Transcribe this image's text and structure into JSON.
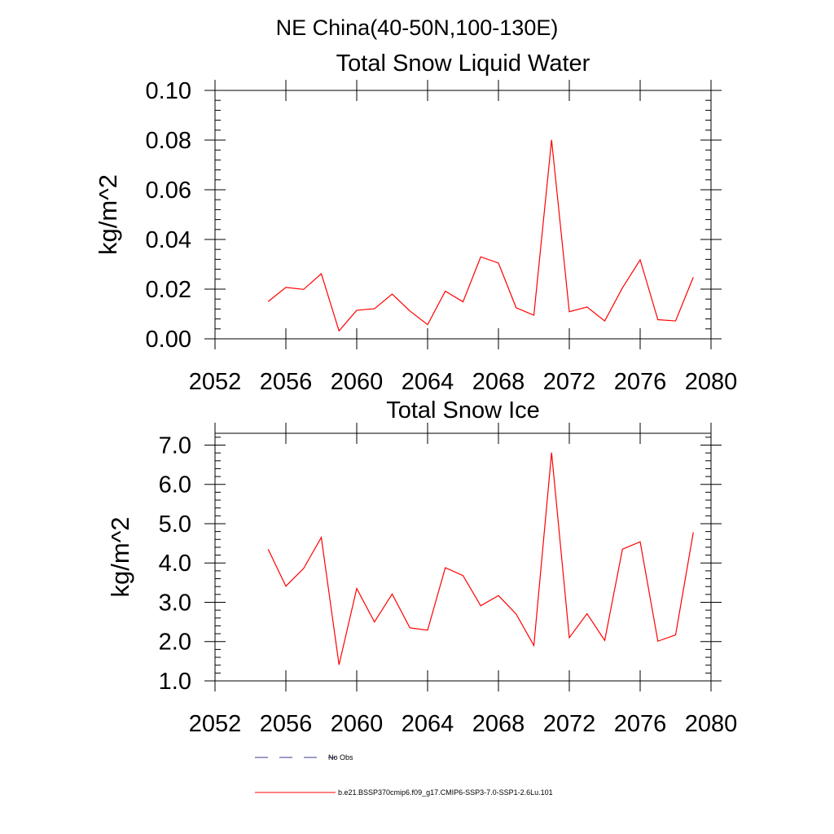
{
  "figure": {
    "title": "NE China(40-50N,100-130E)"
  },
  "legend": {
    "placement": "bottom",
    "entries": [
      {
        "label": "No Obs",
        "color": "#3b3b8f",
        "style": "dashed"
      },
      {
        "label": "b.e21.BSSP370cmip6.f09_g17.CMIP6-SSP3-7.0-SSP1-2.6Lu.101",
        "color": "#ff0000",
        "style": "solid"
      }
    ]
  },
  "chart_data": [
    {
      "type": "line",
      "title": "Total Snow Liquid Water",
      "xlabel": "",
      "ylabel": "kg/m^2",
      "xlim": [
        2052,
        2080
      ],
      "ylim": [
        0,
        0.1
      ],
      "xticks": [
        2052,
        2056,
        2060,
        2064,
        2068,
        2072,
        2076,
        2080
      ],
      "xtick_labels": [
        "2052",
        "2056",
        "2060",
        "2064",
        "2068",
        "2072",
        "2076",
        "2080"
      ],
      "yticks": [
        0,
        0.02,
        0.04,
        0.06,
        0.08,
        0.1
      ],
      "ytick_labels": [
        "0.00",
        "0.02",
        "0.04",
        "0.06",
        "0.08",
        "0.10"
      ],
      "grid": false,
      "x": [
        2055,
        2056,
        2057,
        2058,
        2059,
        2060,
        2061,
        2062,
        2063,
        2064,
        2065,
        2066,
        2067,
        2068,
        2069,
        2070,
        2071,
        2072,
        2073,
        2074,
        2075,
        2076,
        2077,
        2078,
        2079
      ],
      "series": [
        {
          "color": "#ff0000",
          "values": [
            0.015,
            0.0207,
            0.0199,
            0.0262,
            0.0032,
            0.0115,
            0.0121,
            0.018,
            0.0112,
            0.0057,
            0.0192,
            0.0149,
            0.033,
            0.0305,
            0.0125,
            0.0095,
            0.0801,
            0.0109,
            0.0128,
            0.0072,
            0.0205,
            0.0318,
            0.0077,
            0.0072,
            0.0248
          ]
        }
      ]
    },
    {
      "type": "line",
      "title": "Total Snow Ice",
      "xlabel": "",
      "ylabel": "kg/m^2",
      "xlim": [
        2052,
        2080
      ],
      "ylim": [
        1.0,
        7.3
      ],
      "xticks": [
        2052,
        2056,
        2060,
        2064,
        2068,
        2072,
        2076,
        2080
      ],
      "xtick_labels": [
        "2052",
        "2056",
        "2060",
        "2064",
        "2068",
        "2072",
        "2076",
        "2080"
      ],
      "yticks": [
        1,
        2,
        3,
        4,
        5,
        6,
        7
      ],
      "ytick_labels": [
        "1.0",
        "2.0",
        "3.0",
        "4.0",
        "5.0",
        "6.0",
        "7.0"
      ],
      "grid": false,
      "x": [
        2055,
        2056,
        2057,
        2058,
        2059,
        2060,
        2061,
        2062,
        2063,
        2064,
        2065,
        2066,
        2067,
        2068,
        2069,
        2070,
        2071,
        2072,
        2073,
        2074,
        2075,
        2076,
        2077,
        2078,
        2079
      ],
      "series": [
        {
          "color": "#ff0000",
          "values": [
            4.35,
            3.41,
            3.86,
            4.65,
            1.41,
            3.35,
            2.5,
            3.21,
            2.35,
            2.29,
            3.88,
            3.68,
            2.91,
            3.17,
            2.7,
            1.9,
            6.81,
            2.1,
            2.71,
            2.03,
            4.35,
            4.54,
            2.01,
            2.17,
            4.78
          ]
        }
      ]
    }
  ]
}
